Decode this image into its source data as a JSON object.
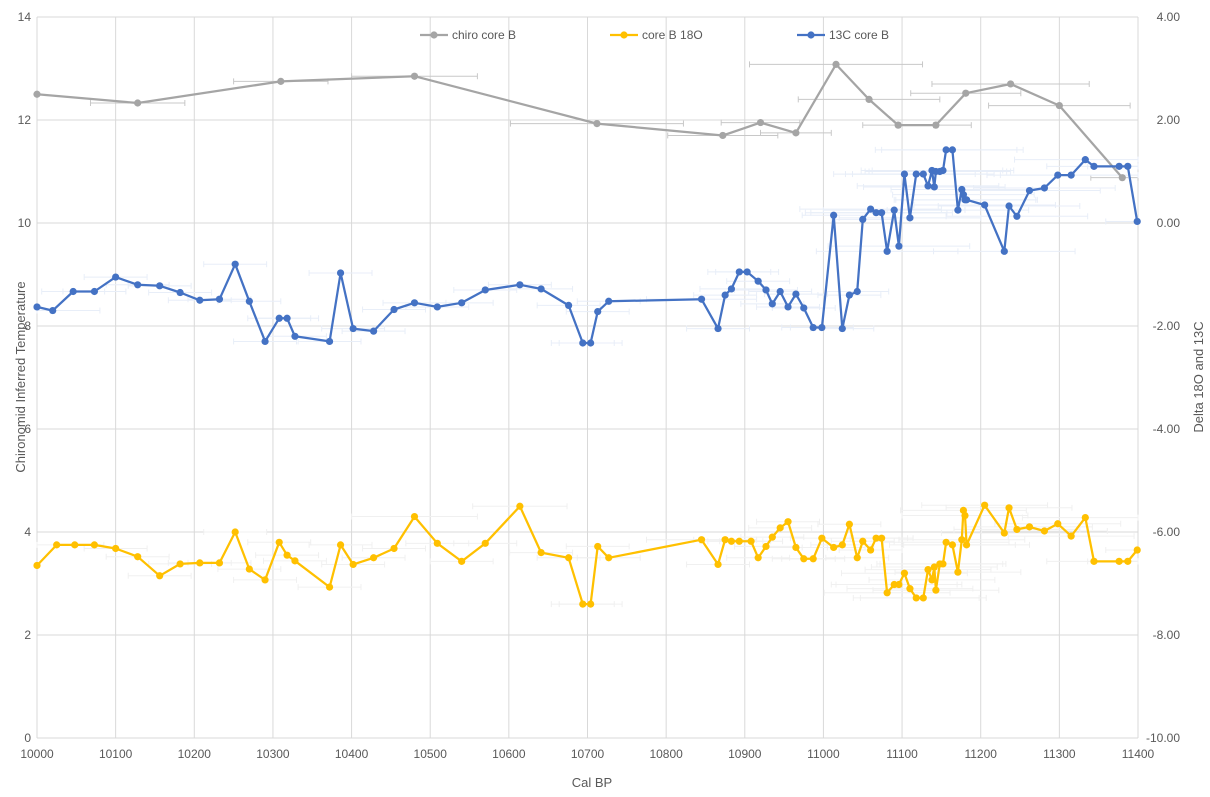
{
  "chart_data": {
    "type": "line",
    "title": "",
    "xlabel": "Cal BP",
    "ylabel_left": "Chironomid Inferred Temperature",
    "ylabel_right": "Delta 18O and 13C",
    "xlim": [
      10000,
      11400
    ],
    "x_ticks": [
      "10000",
      "10100",
      "10200",
      "10300",
      "10400",
      "10500",
      "10600",
      "10700",
      "10800",
      "10900",
      "11000",
      "11100",
      "11200",
      "11300",
      "11400"
    ],
    "ylim_left": [
      0,
      14
    ],
    "y_ticks_left": [
      "0",
      "2",
      "4",
      "6",
      "8",
      "10",
      "12",
      "14"
    ],
    "ylim_right": [
      -10,
      4
    ],
    "y_ticks_right": [
      "-10.00",
      "-8.00",
      "-6.00",
      "-4.00",
      "-2.00",
      "0.00",
      "2.00",
      "4.00"
    ],
    "grid": true,
    "legend_position": "top",
    "series": [
      {
        "name": "chiro core B",
        "axis": "left",
        "color": "#a5a5a5",
        "x": [
          10000,
          10128,
          10310,
          10480,
          10712,
          10872,
          10920,
          10965,
          11016,
          11058,
          11095,
          11143,
          11181,
          11238,
          11300,
          11380
        ],
        "y": [
          12.5,
          12.33,
          12.75,
          12.85,
          11.93,
          11.7,
          11.95,
          11.75,
          13.08,
          12.4,
          11.9,
          11.9,
          12.52,
          12.7,
          12.28,
          10.88
        ],
        "x_err": [
          0,
          60,
          60,
          80,
          110,
          70,
          50,
          45,
          110,
          90,
          45,
          45,
          70,
          100,
          90,
          40
        ]
      },
      {
        "name": "core B 18O",
        "axis": "right",
        "color": "#ffc000",
        "x": [
          10000,
          10025,
          10048,
          10073,
          10100,
          10128,
          10156,
          10182,
          10207,
          10232,
          10252,
          10270,
          10290,
          10308,
          10318,
          10328,
          10372,
          10386,
          10402,
          10428,
          10454,
          10480,
          10509,
          10540,
          10570,
          10614,
          10641,
          10676,
          10694,
          10704,
          10713,
          10727,
          10845,
          10866,
          10875,
          10883,
          10893,
          10908,
          10917,
          10927,
          10935,
          10945,
          10955,
          10965,
          10975,
          10987,
          10998,
          11013,
          11024,
          11033,
          11043,
          11050,
          11060,
          11067,
          11074,
          11081,
          11090,
          11096,
          11103,
          11110,
          11118,
          11127,
          11133,
          11138,
          11141,
          11143,
          11148,
          11152,
          11156,
          11164,
          11171,
          11176,
          11178,
          11180,
          11182,
          11205,
          11230,
          11236,
          11246,
          11262,
          11281,
          11298,
          11315,
          11333,
          11344,
          11376,
          11387,
          11399
        ],
        "y": [
          -6.65,
          -6.25,
          -6.25,
          -6.25,
          -6.32,
          -6.48,
          -6.85,
          -6.62,
          -6.6,
          -6.6,
          -6.0,
          -6.72,
          -6.93,
          -6.2,
          -6.45,
          -6.56,
          -7.07,
          -6.25,
          -6.63,
          -6.5,
          -6.32,
          -5.7,
          -6.22,
          -6.57,
          -6.22,
          -5.5,
          -6.4,
          -6.5,
          -7.4,
          -7.4,
          -6.28,
          -6.5,
          -6.15,
          -6.63,
          -6.15,
          -6.18,
          -6.18,
          -6.18,
          -6.5,
          -6.28,
          -6.1,
          -5.92,
          -5.8,
          -6.3,
          -6.52,
          -6.52,
          -6.12,
          -6.3,
          -6.25,
          -5.85,
          -6.5,
          -6.18,
          -6.35,
          -6.12,
          -6.12,
          -7.18,
          -7.02,
          -7.02,
          -6.8,
          -7.1,
          -7.28,
          -7.28,
          -6.73,
          -6.93,
          -6.68,
          -7.13,
          -6.62,
          -6.62,
          -6.2,
          -6.25,
          -6.78,
          -6.15,
          -5.58,
          -5.68,
          -6.25,
          -5.48,
          -6.02,
          -5.53,
          -5.95,
          -5.9,
          -5.98,
          -5.84,
          -6.08,
          -5.72,
          -6.57,
          -6.57,
          -6.57,
          -6.35
        ],
        "x_err": [
          0,
          60,
          0,
          0,
          40,
          40,
          40,
          40,
          40,
          40,
          40,
          40,
          40,
          40,
          40,
          40,
          40,
          40,
          40,
          40,
          40,
          80,
          40,
          40,
          40,
          60,
          40,
          40,
          40,
          40,
          40,
          40,
          70,
          40,
          40,
          40,
          40,
          40,
          40,
          40,
          40,
          40,
          40,
          40,
          40,
          40,
          40,
          40,
          40,
          40,
          40,
          40,
          40,
          40,
          40,
          80,
          80,
          80,
          80,
          80,
          80,
          80,
          80,
          80,
          80,
          80,
          80,
          80,
          80,
          80,
          80,
          80,
          80,
          80,
          80,
          80,
          80,
          80,
          80,
          80,
          80,
          80,
          80,
          80,
          60,
          40,
          40,
          40
        ]
      },
      {
        "name": "13C core B",
        "axis": "right",
        "color": "#4472c4",
        "x": [
          10000,
          10020,
          10046,
          10073,
          10100,
          10128,
          10156,
          10182,
          10207,
          10232,
          10252,
          10270,
          10290,
          10308,
          10318,
          10328,
          10372,
          10386,
          10402,
          10428,
          10454,
          10480,
          10509,
          10540,
          10570,
          10614,
          10641,
          10676,
          10694,
          10704,
          10713,
          10727,
          10845,
          10866,
          10875,
          10883,
          10893,
          10903,
          10917,
          10927,
          10935,
          10945,
          10955,
          10965,
          10975,
          10987,
          10998,
          11013,
          11024,
          11033,
          11043,
          11050,
          11060,
          11067,
          11074,
          11081,
          11090,
          11096,
          11103,
          11110,
          11118,
          11127,
          11133,
          11138,
          11141,
          11143,
          11148,
          11152,
          11156,
          11164,
          11171,
          11176,
          11178,
          11180,
          11182,
          11205,
          11230,
          11236,
          11246,
          11262,
          11281,
          11298,
          11315,
          11333,
          11344,
          11376,
          11387,
          11399
        ],
        "y": [
          -1.63,
          -1.7,
          -1.33,
          -1.33,
          -1.05,
          -1.2,
          -1.22,
          -1.35,
          -1.5,
          -1.48,
          -0.8,
          -1.52,
          -2.3,
          -1.85,
          -1.85,
          -2.2,
          -2.3,
          -0.97,
          -2.05,
          -2.1,
          -1.68,
          -1.55,
          -1.63,
          -1.55,
          -1.3,
          -1.2,
          -1.28,
          -1.6,
          -2.33,
          -2.33,
          -1.72,
          -1.52,
          -1.48,
          -2.05,
          -1.4,
          -1.28,
          -0.95,
          -0.95,
          -1.13,
          -1.3,
          -1.57,
          -1.33,
          -1.63,
          -1.38,
          -1.65,
          -2.03,
          -2.03,
          0.15,
          -2.05,
          -1.4,
          -1.33,
          0.07,
          0.27,
          0.2,
          0.2,
          -0.55,
          0.25,
          -0.45,
          0.95,
          0.1,
          0.95,
          0.95,
          0.72,
          1.02,
          0.7,
          1.0,
          1.0,
          1.02,
          1.42,
          1.42,
          0.25,
          0.65,
          0.55,
          0.45,
          0.45,
          0.35,
          -0.55,
          0.33,
          0.13,
          0.63,
          0.68,
          0.93,
          0.93,
          1.23,
          1.1,
          1.1,
          1.1,
          0.03
        ],
        "x_err": [
          0,
          60,
          40,
          40,
          40,
          40,
          40,
          40,
          40,
          40,
          40,
          40,
          40,
          40,
          40,
          40,
          40,
          40,
          40,
          40,
          40,
          40,
          40,
          40,
          40,
          40,
          40,
          40,
          40,
          40,
          40,
          40,
          70,
          40,
          40,
          40,
          40,
          40,
          40,
          40,
          40,
          40,
          40,
          40,
          40,
          40,
          40,
          40,
          40,
          40,
          40,
          40,
          90,
          90,
          90,
          90,
          90,
          90,
          90,
          90,
          90,
          90,
          90,
          90,
          90,
          90,
          90,
          90,
          90,
          90,
          90,
          90,
          90,
          90,
          90,
          90,
          90,
          90,
          90,
          90,
          90,
          90,
          90,
          90,
          60,
          40,
          40,
          40
        ]
      }
    ]
  }
}
